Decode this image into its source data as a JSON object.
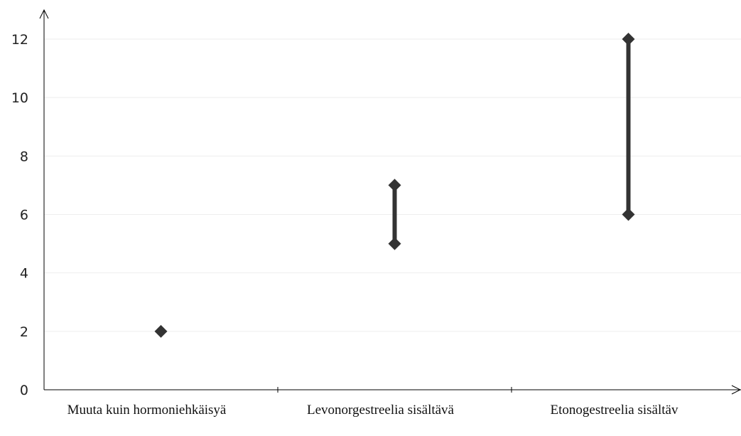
{
  "chart_data": {
    "type": "range",
    "title": "",
    "xlabel": "",
    "ylabel": "",
    "ylim": [
      0,
      12
    ],
    "yticks": [
      0,
      2,
      4,
      6,
      8,
      10,
      12
    ],
    "grid": true,
    "categories": [
      "Muuta kuin hormoniehkäisyä",
      "Levonorgestreelia sisältävä",
      "Etonogestreelia sisältäv"
    ],
    "series": [
      {
        "values": [
          [
            2,
            2
          ],
          [
            5,
            7
          ],
          [
            6,
            12
          ]
        ]
      }
    ],
    "colors": {
      "marker": "#333333",
      "range_line": "#333333",
      "grid": "#eeeeee",
      "axis": "#000000"
    }
  }
}
